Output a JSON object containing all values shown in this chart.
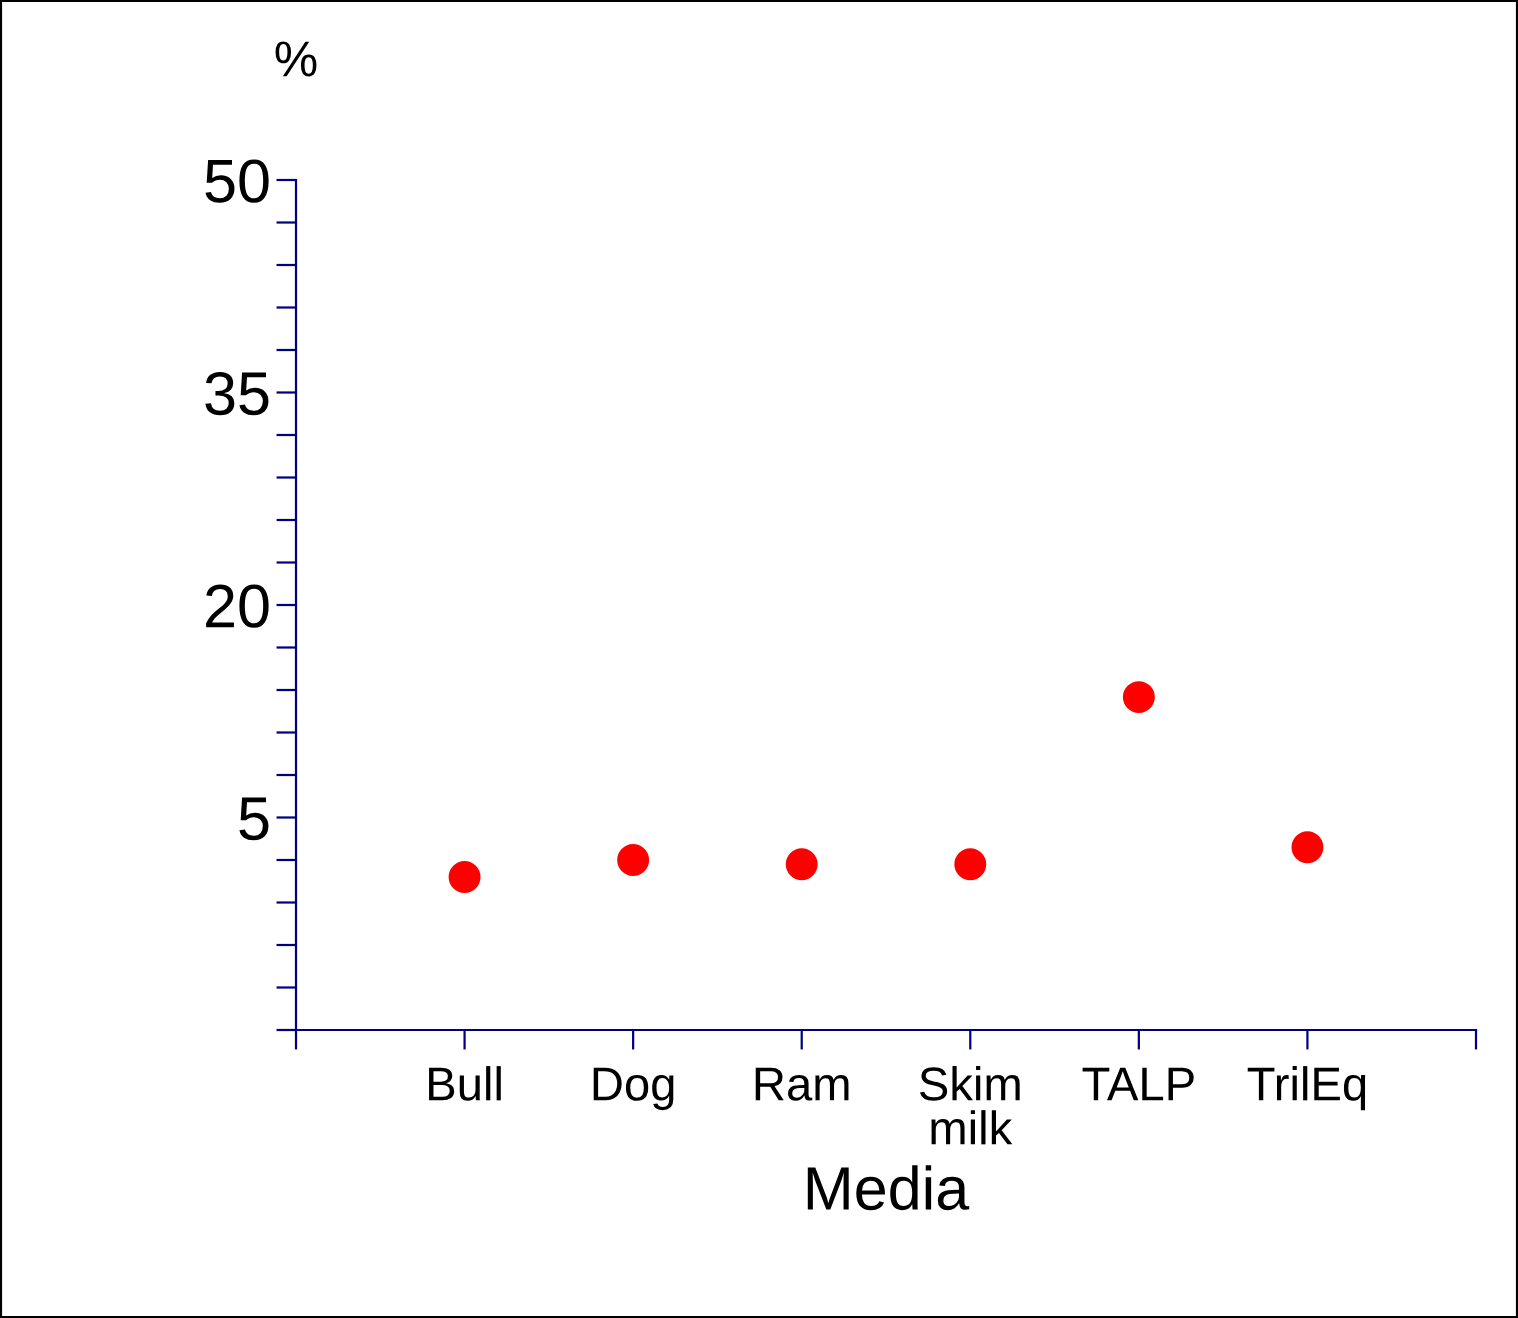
{
  "chart_data": {
    "type": "scatter",
    "ylabel": "%",
    "xlabel": "Media",
    "categories": [
      "Bull",
      "Dog",
      "Ram",
      "Skim\nmilk",
      "TALP",
      "TrilEq"
    ],
    "series": [
      {
        "color": "#ff0000",
        "values": [
          0.8,
          2.0,
          1.7,
          1.7,
          13.5,
          2.9
        ]
      }
    ],
    "marker": "circle",
    "ylim": [
      -10,
      50
    ],
    "yticks": [
      {
        "value": -10,
        "label": null
      },
      {
        "value": -7,
        "label": null
      },
      {
        "value": -4,
        "label": null
      },
      {
        "value": -1,
        "label": null
      },
      {
        "value": 2,
        "label": null
      },
      5,
      {
        "value": 8,
        "label": null
      },
      {
        "value": 11,
        "label": null
      },
      {
        "value": 14,
        "label": null
      },
      {
        "value": 17,
        "label": null
      },
      20,
      {
        "value": 23,
        "label": null
      },
      {
        "value": 26,
        "label": null
      },
      {
        "value": 29,
        "label": null
      },
      {
        "value": 32,
        "label": null
      },
      35,
      {
        "value": 38,
        "label": null
      },
      {
        "value": 41,
        "label": null
      },
      {
        "value": 44,
        "label": null
      },
      {
        "value": 47,
        "label": null
      },
      50
    ],
    "grid": false,
    "legend": false
  }
}
